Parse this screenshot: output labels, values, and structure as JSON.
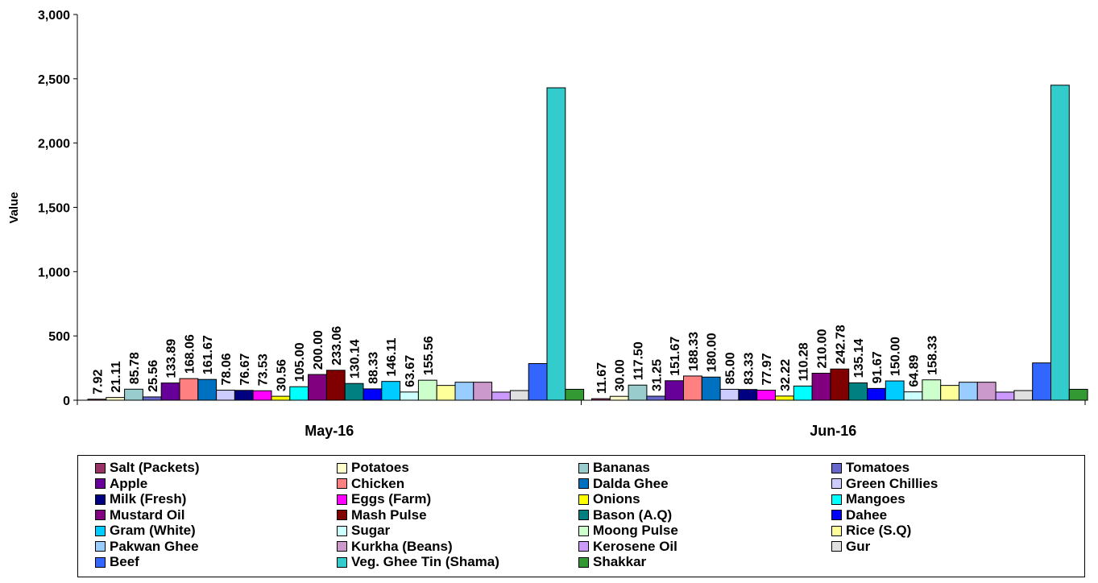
{
  "chart_data": {
    "type": "bar",
    "ylabel": "Value",
    "ylim": [
      0,
      3000
    ],
    "yticks": [
      "0",
      "500",
      "1,000",
      "1,500",
      "2,000",
      "2,500",
      "3,000"
    ],
    "categories": [
      "May-16",
      "Jun-16"
    ],
    "legend_placement": "bottom",
    "series": [
      {
        "name": "Salt (Packets)",
        "color": "#993366",
        "values": [
          7.92,
          11.67
        ],
        "labels": [
          "7.92",
          "11.67"
        ]
      },
      {
        "name": "Potatoes",
        "color": "#FFFFCC",
        "values": [
          21.11,
          30.0
        ],
        "labels": [
          "21.11",
          "30.00"
        ]
      },
      {
        "name": "Bananas",
        "color": "#99CCCC",
        "values": [
          85.78,
          117.5
        ],
        "labels": [
          "85.78",
          "117.50"
        ]
      },
      {
        "name": "Tomatoes",
        "color": "#6666CC",
        "values": [
          25.56,
          31.25
        ],
        "labels": [
          "25.56",
          "31.25"
        ]
      },
      {
        "name": "Apple",
        "color": "#660099",
        "values": [
          133.89,
          151.67
        ],
        "labels": [
          "133.89",
          "151.67"
        ]
      },
      {
        "name": "Chicken",
        "color": "#FF8080",
        "values": [
          168.06,
          188.33
        ],
        "labels": [
          "168.06",
          "188.33"
        ]
      },
      {
        "name": "Dalda Ghee",
        "color": "#0070C0",
        "values": [
          161.67,
          180.0
        ],
        "labels": [
          "161.67",
          "180.00"
        ]
      },
      {
        "name": "Green Chillies",
        "color": "#CCCCFF",
        "values": [
          78.06,
          85.0
        ],
        "labels": [
          "78.06",
          "85.00"
        ]
      },
      {
        "name": "Milk (Fresh)",
        "color": "#000080",
        "values": [
          76.67,
          83.33
        ],
        "labels": [
          "76.67",
          "83.33"
        ]
      },
      {
        "name": "Eggs (Farm)",
        "color": "#FF00FF",
        "values": [
          73.53,
          77.97
        ],
        "labels": [
          "73.53",
          "77.97"
        ]
      },
      {
        "name": "Onions",
        "color": "#FFFF00",
        "values": [
          30.56,
          32.22
        ],
        "labels": [
          "30.56",
          "32.22"
        ]
      },
      {
        "name": "Mangoes",
        "color": "#00FFFF",
        "values": [
          105.0,
          110.28
        ],
        "labels": [
          "105.00",
          "110.28"
        ]
      },
      {
        "name": "Mustard Oil",
        "color": "#800080",
        "values": [
          200.0,
          210.0
        ],
        "labels": [
          "200.00",
          "210.00"
        ]
      },
      {
        "name": "Mash Pulse",
        "color": "#800000",
        "values": [
          233.06,
          242.78
        ],
        "labels": [
          "233.06",
          "242.78"
        ]
      },
      {
        "name": "Bason (A.Q)",
        "color": "#008080",
        "values": [
          130.14,
          135.14
        ],
        "labels": [
          "130.14",
          "135.14"
        ]
      },
      {
        "name": "Dahee",
        "color": "#0000FF",
        "values": [
          88.33,
          91.67
        ],
        "labels": [
          "88.33",
          "91.67"
        ]
      },
      {
        "name": "Gram (White)",
        "color": "#00CCFF",
        "values": [
          146.11,
          150.0
        ],
        "labels": [
          "146.11",
          "150.00"
        ]
      },
      {
        "name": "Sugar",
        "color": "#CCFFFF",
        "values": [
          63.67,
          64.89
        ],
        "labels": [
          "63.67",
          "64.89"
        ]
      },
      {
        "name": "Moong Pulse",
        "color": "#CCFFCC",
        "values": [
          155.56,
          158.33
        ],
        "labels": [
          "155.56",
          "158.33"
        ]
      },
      {
        "name": "Rice (S.Q)",
        "color": "#FFFF99",
        "values": [
          115,
          115
        ],
        "labels": []
      },
      {
        "name": "Pakwan Ghee",
        "color": "#99CCFF",
        "values": [
          140,
          140
        ],
        "labels": []
      },
      {
        "name": "Kurkha (Beans)",
        "color": "#CC99CC",
        "values": [
          140,
          140
        ],
        "labels": []
      },
      {
        "name": "Kerosene Oil",
        "color": "#CC99FF",
        "values": [
          63,
          63
        ],
        "labels": []
      },
      {
        "name": "Gur",
        "color": "#E0E0E0",
        "values": [
          75,
          75
        ],
        "labels": []
      },
      {
        "name": "Beef",
        "color": "#3366FF",
        "values": [
          285,
          290
        ],
        "labels": []
      },
      {
        "name": "Veg. Ghee Tin (Shama)",
        "color": "#33CCCC",
        "values": [
          2430,
          2450
        ],
        "labels": []
      },
      {
        "name": "Shakkar",
        "color": "#339933",
        "values": [
          85,
          85
        ],
        "labels": []
      }
    ]
  }
}
